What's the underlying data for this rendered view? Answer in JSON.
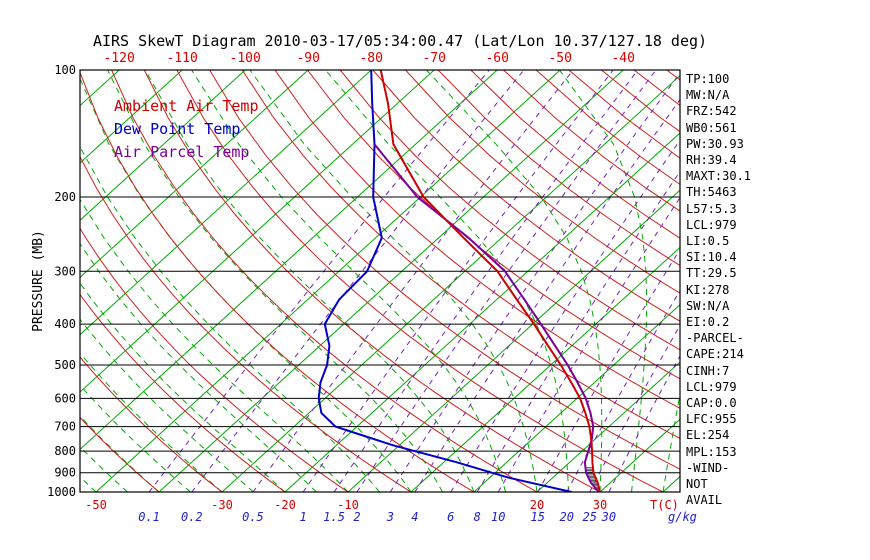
{
  "colors": {
    "top_axis_labels": "#dd0000",
    "bottom_temp_labels": "#dd0000",
    "mixing_labels": "#2222cc",
    "pressure_labels": "#000000",
    "background": "#ffffff"
  },
  "stats_panel": {
    "lines": [
      "TP:100",
      "MW:N/A",
      "FRZ:542",
      "WB0:561",
      "PW:30.93",
      "RH:39.4",
      "MAXT:30.1",
      "TH:5463",
      "L57:5.3",
      "LCL:979",
      "LI:0.5",
      "SI:10.4",
      "TT:29.5",
      "KI:278",
      "SW:N/A",
      "EI:0.2",
      "-PARCEL-",
      "CAPE:214",
      "CINH:7",
      "LCL:979",
      "CAP:0.0",
      "LFC:955",
      "EL:254",
      "MPL:153",
      "-WIND-",
      "NOT",
      "AVAIL"
    ]
  },
  "chart_data": {
    "type": "line",
    "variant": "skew-t-log-p",
    "title": "AIRS SkewT Diagram 2010-03-17/05:34:00.47 (Lat/Lon 10.37/127.18 deg)",
    "x_axis": {
      "unit_label": "T(C)",
      "secondary_unit_label": "g/kg",
      "top_isotherm_labels_c": [
        -120,
        -110,
        -100,
        -90,
        -80,
        -70,
        -60,
        -50,
        -40
      ],
      "bottom_isotherm_labels_c": [
        -50,
        -30,
        -20,
        -10,
        20,
        30
      ]
    },
    "y_axis": {
      "label": "PRESSURE (MB)",
      "scale": "log",
      "range_mb": [
        100,
        1000
      ],
      "ticks_mb": [
        100,
        200,
        300,
        400,
        500,
        600,
        700,
        800,
        900,
        1000
      ]
    },
    "background_lines": {
      "isotherms_c": {
        "min": -120,
        "max": 40,
        "step": 10,
        "color": "#00aa00"
      },
      "moist_adiabats_c": {
        "min": -50,
        "max": 70,
        "step": 5,
        "color": "#00aa00"
      },
      "dry_adiabats_c": {
        "min": -40,
        "max": 200,
        "step": 10,
        "color": "#cc2222"
      },
      "mixing_ratio_gkg": {
        "values": [
          0.1,
          0.2,
          0.5,
          1,
          1.5,
          2,
          3,
          4,
          6,
          8,
          10,
          15,
          20,
          25,
          30
        ],
        "color": "#7722bb"
      }
    },
    "series": [
      {
        "name": "Ambient Air Temp",
        "color": "#cc0000",
        "points_p_mb_t_c": [
          [
            1000,
            30
          ],
          [
            975,
            29
          ],
          [
            950,
            28
          ],
          [
            925,
            26.8
          ],
          [
            900,
            25.6
          ],
          [
            850,
            23.6
          ],
          [
            800,
            21.6
          ],
          [
            750,
            19.4
          ],
          [
            700,
            16.9
          ],
          [
            650,
            13.9
          ],
          [
            600,
            10.5
          ],
          [
            550,
            6.3
          ],
          [
            500,
            1.6
          ],
          [
            450,
            -3.8
          ],
          [
            400,
            -9.8
          ],
          [
            350,
            -16.8
          ],
          [
            300,
            -24.8
          ],
          [
            250,
            -36
          ],
          [
            200,
            -49.5
          ],
          [
            150,
            -63.5
          ],
          [
            120,
            -71.5
          ],
          [
            100,
            -78.5
          ]
        ]
      },
      {
        "name": "Dew Point Temp",
        "color": "#0000cc",
        "points_p_mb_t_c": [
          [
            1000,
            25.5
          ],
          [
            925,
            13
          ],
          [
            850,
            2
          ],
          [
            775,
            -11
          ],
          [
            700,
            -23.4
          ],
          [
            650,
            -28
          ],
          [
            600,
            -31
          ],
          [
            550,
            -33.5
          ],
          [
            500,
            -35.5
          ],
          [
            450,
            -38.5
          ],
          [
            400,
            -43
          ],
          [
            350,
            -45
          ],
          [
            300,
            -45.5
          ],
          [
            250,
            -49
          ],
          [
            200,
            -57.5
          ],
          [
            150,
            -66.5
          ],
          [
            120,
            -74
          ],
          [
            100,
            -80
          ]
        ]
      },
      {
        "name": "Air Parcel Temp",
        "color": "#7a0099",
        "points_p_mb_t_c": [
          [
            1000,
            29.8
          ],
          [
            950,
            26.9
          ],
          [
            900,
            24.4
          ],
          [
            850,
            22.4
          ],
          [
            800,
            21
          ],
          [
            750,
            19.5
          ],
          [
            700,
            17.5
          ],
          [
            650,
            14.7
          ],
          [
            600,
            11.4
          ],
          [
            550,
            7.3
          ],
          [
            500,
            2.7
          ],
          [
            450,
            -2.7
          ],
          [
            400,
            -8.7
          ],
          [
            350,
            -15.6
          ],
          [
            300,
            -23.6
          ],
          [
            250,
            -35.2
          ],
          [
            200,
            -50.5
          ],
          [
            150,
            -66.5
          ]
        ]
      }
    ],
    "cin_hatch": {
      "p_top_mb": 870,
      "p_bottom_mb": 995
    }
  }
}
